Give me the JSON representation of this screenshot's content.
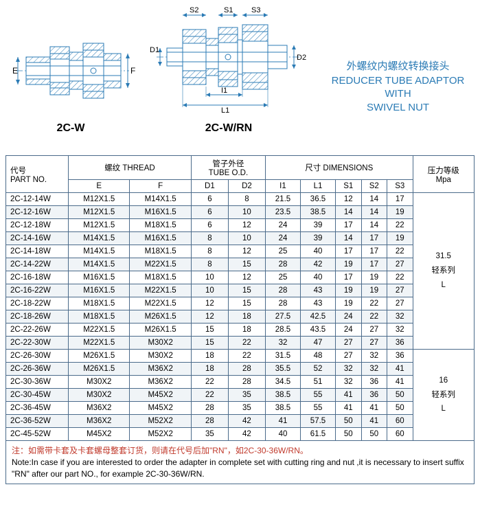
{
  "diagrams": {
    "left_label": "2C-W",
    "right_label": "2C-W/RN",
    "dims_left": {
      "E": "E",
      "F": "F"
    },
    "dims_right": {
      "S2": "S2",
      "S1": "S1",
      "S3": "S3",
      "D1": "D1",
      "D2": "D2",
      "I1": "I1",
      "L1": "L1"
    },
    "stroke": "#2b7bb5",
    "hatch": "#2b7bb5",
    "dim_color": "#2b7bb5",
    "label_color": "#000"
  },
  "title": {
    "cn": "外螺纹内螺纹转换接头",
    "en1": "REDUCER TUBE ADAPTOR WITH",
    "en2": "SWIVEL NUT"
  },
  "table": {
    "headers": {
      "part_cn": "代号",
      "part_en": "PART NO.",
      "thread_cn": "螺纹",
      "thread_en": "THREAD",
      "tube_cn": "管子外径",
      "tube_en": "TUBE O.D.",
      "dim_cn": "尺寸",
      "dim_en": "DIMENSIONS",
      "press_cn": "压力等级",
      "press_en": "Mpa",
      "E": "E",
      "F": "F",
      "D1": "D1",
      "D2": "D2",
      "I1": "I1",
      "L1": "L1",
      "S1": "S1",
      "S2": "S2",
      "S3": "S3"
    },
    "groups": [
      {
        "pressure": "31.5",
        "series_cn": "轻系列",
        "series_en": "L",
        "rows": [
          [
            "2C-12-14W",
            "M12X1.5",
            "M14X1.5",
            "6",
            "8",
            "21.5",
            "36.5",
            "12",
            "14",
            "17"
          ],
          [
            "2C-12-16W",
            "M12X1.5",
            "M16X1.5",
            "6",
            "10",
            "23.5",
            "38.5",
            "14",
            "14",
            "19"
          ],
          [
            "2C-12-18W",
            "M12X1.5",
            "M18X1.5",
            "6",
            "12",
            "24",
            "39",
            "17",
            "14",
            "22"
          ],
          [
            "2C-14-16W",
            "M14X1.5",
            "M16X1.5",
            "8",
            "10",
            "24",
            "39",
            "14",
            "17",
            "19"
          ],
          [
            "2C-14-18W",
            "M14X1.5",
            "M18X1.5",
            "8",
            "12",
            "25",
            "40",
            "17",
            "17",
            "22"
          ],
          [
            "2C-14-22W",
            "M14X1.5",
            "M22X1.5",
            "8",
            "15",
            "28",
            "42",
            "19",
            "17",
            "27"
          ],
          [
            "2C-16-18W",
            "M16X1.5",
            "M18X1.5",
            "10",
            "12",
            "25",
            "40",
            "17",
            "19",
            "22"
          ],
          [
            "2C-16-22W",
            "M16X1.5",
            "M22X1.5",
            "10",
            "15",
            "28",
            "43",
            "19",
            "19",
            "27"
          ],
          [
            "2C-18-22W",
            "M18X1.5",
            "M22X1.5",
            "12",
            "15",
            "28",
            "43",
            "19",
            "22",
            "27"
          ],
          [
            "2C-18-26W",
            "M18X1.5",
            "M26X1.5",
            "12",
            "18",
            "27.5",
            "42.5",
            "24",
            "22",
            "32"
          ],
          [
            "2C-22-26W",
            "M22X1.5",
            "M26X1.5",
            "15",
            "18",
            "28.5",
            "43.5",
            "24",
            "27",
            "32"
          ],
          [
            "2C-22-30W",
            "M22X1.5",
            "M30X2",
            "15",
            "22",
            "32",
            "47",
            "27",
            "27",
            "36"
          ]
        ]
      },
      {
        "pressure": "16",
        "series_cn": "轻系列",
        "series_en": "L",
        "rows": [
          [
            "2C-26-30W",
            "M26X1.5",
            "M30X2",
            "18",
            "22",
            "31.5",
            "48",
            "27",
            "32",
            "36"
          ],
          [
            "2C-26-36W",
            "M26X1.5",
            "M36X2",
            "18",
            "28",
            "35.5",
            "52",
            "32",
            "32",
            "41"
          ],
          [
            "2C-30-36W",
            "M30X2",
            "M36X2",
            "22",
            "28",
            "34.5",
            "51",
            "32",
            "36",
            "41"
          ],
          [
            "2C-30-45W",
            "M30X2",
            "M45X2",
            "22",
            "35",
            "38.5",
            "55",
            "41",
            "36",
            "50"
          ],
          [
            "2C-36-45W",
            "M36X2",
            "M45X2",
            "28",
            "35",
            "38.5",
            "55",
            "41",
            "41",
            "50"
          ],
          [
            "2C-36-52W",
            "M36X2",
            "M52X2",
            "28",
            "42",
            "41",
            "57.5",
            "50",
            "41",
            "60"
          ],
          [
            "2C-45-52W",
            "M45X2",
            "M52X2",
            "35",
            "42",
            "40",
            "61.5",
            "50",
            "50",
            "60"
          ]
        ]
      }
    ],
    "shade_color": "#f0f4f7",
    "border_color": "#4a6a8a"
  },
  "notes": {
    "cn": "注：如需带卡套及卡套螺母整套订货，则请在代号后加\"RN\"，如2C-30-36W/RN。",
    "en": "Note:In case if you are interested to order the adapter in complete set with cutting ring and nut ,it is necessary to insert suffix \"RN\" after our part NO., for example  2C-30-36W/RN."
  }
}
